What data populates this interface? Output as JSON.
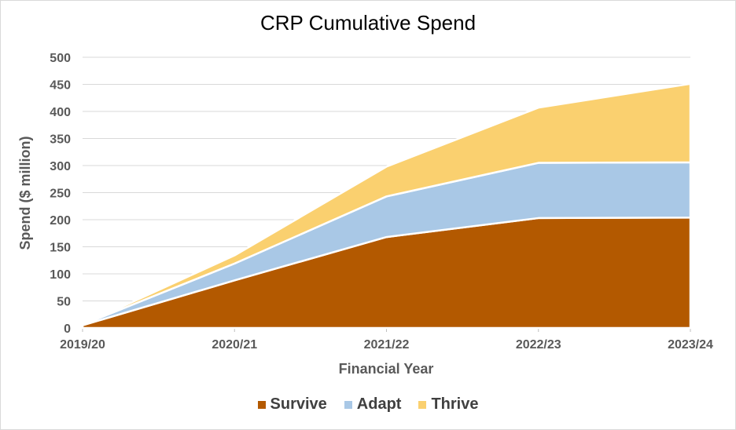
{
  "chart_data": {
    "type": "area",
    "stacked": true,
    "title": "CRP Cumulative Spend",
    "xlabel": "Financial Year",
    "ylabel": "Spend ($ million)",
    "categories": [
      "2019/20",
      "2020/21",
      "2021/22",
      "2022/23",
      "2023/24"
    ],
    "ylim": [
      0,
      500
    ],
    "yticks": [
      0,
      50,
      100,
      150,
      200,
      250,
      300,
      350,
      400,
      450,
      500
    ],
    "grid": true,
    "legend_position": "bottom",
    "series": [
      {
        "name": "Survive",
        "color": "#b35900",
        "values": [
          5,
          88,
          168,
          203,
          204
        ]
      },
      {
        "name": "Adapt",
        "color": "#a9c8e6",
        "values": [
          1,
          31,
          75,
          102,
          102
        ]
      },
      {
        "name": "Thrive",
        "color": "#fad06f",
        "values": [
          0,
          15,
          55,
          102,
          145
        ]
      }
    ]
  }
}
